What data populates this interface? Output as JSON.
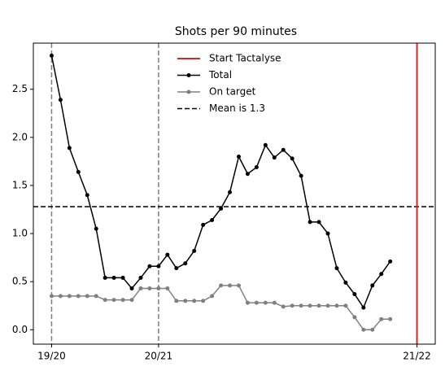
{
  "chart_data": {
    "type": "line",
    "title": "Shots per 90 minutes",
    "x": [
      0,
      1,
      2,
      3,
      4,
      5,
      6,
      7,
      8,
      9,
      10,
      11,
      12,
      13,
      14,
      15,
      16,
      17,
      18,
      19,
      20,
      21,
      22,
      23,
      24,
      25,
      26,
      27,
      28,
      29,
      30,
      31,
      32,
      33,
      34,
      35,
      36,
      37,
      38
    ],
    "series": [
      {
        "name": "Total",
        "color": "#000000",
        "values": [
          2.85,
          2.39,
          1.89,
          1.64,
          1.4,
          1.05,
          0.54,
          0.54,
          0.54,
          0.43,
          0.54,
          0.66,
          0.66,
          0.78,
          0.64,
          0.69,
          0.82,
          1.09,
          1.14,
          1.26,
          1.43,
          1.8,
          1.62,
          1.69,
          1.92,
          1.79,
          1.87,
          1.78,
          1.6,
          1.12,
          1.12,
          1.0,
          0.64,
          0.49,
          0.37,
          0.23,
          0.46,
          0.58,
          0.71
        ]
      },
      {
        "name": "On target",
        "color": "#808080",
        "values": [
          0.35,
          0.35,
          0.35,
          0.35,
          0.35,
          0.35,
          0.31,
          0.31,
          0.31,
          0.31,
          0.43,
          0.43,
          0.43,
          0.43,
          0.3,
          0.3,
          0.3,
          0.3,
          0.35,
          0.46,
          0.46,
          0.46,
          0.28,
          0.28,
          0.28,
          0.28,
          0.24,
          0.25,
          0.25,
          0.25,
          0.25,
          0.25,
          0.25,
          0.25,
          0.13,
          0.0,
          0.0,
          0.11,
          0.11
        ]
      }
    ],
    "start_line": {
      "name": "Start Tactalyse",
      "color": "#d62728",
      "x": 41
    },
    "season_lines": [
      0,
      12
    ],
    "mean_line": {
      "name": "Mean is 1.3",
      "value": 1.28
    },
    "xlim": [
      -2.05,
      43.05
    ],
    "ylim": [
      -0.15,
      2.98
    ],
    "xticks": [
      {
        "value": 0,
        "label": "19/20"
      },
      {
        "value": 12,
        "label": "20/21"
      },
      {
        "value": 41,
        "label": "21/22"
      }
    ],
    "yticks": [
      {
        "value": 0,
        "label": "0.0"
      },
      {
        "value": 0.5,
        "label": "0.5"
      },
      {
        "value": 1,
        "label": "1.0"
      },
      {
        "value": 1.5,
        "label": "1.5"
      },
      {
        "value": 2,
        "label": "2.0"
      },
      {
        "value": 2.5,
        "label": "2.5"
      }
    ],
    "legend": "upper center"
  }
}
